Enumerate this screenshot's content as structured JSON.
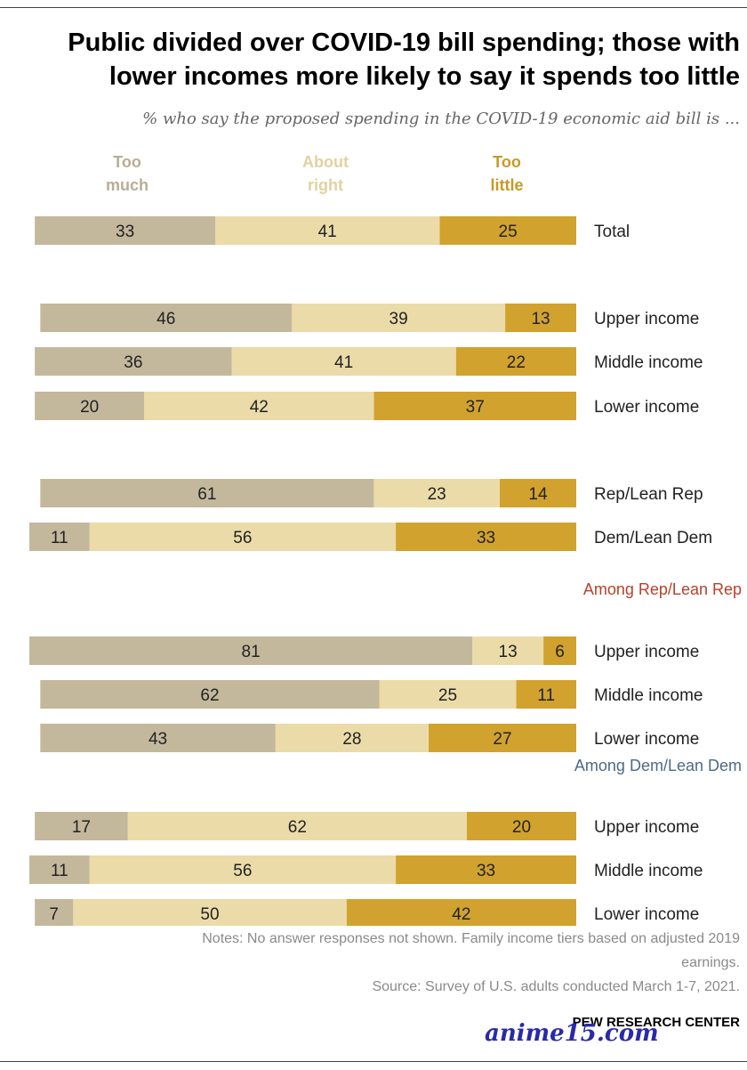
{
  "title": {
    "line1": "Public divided over COVID-19 bill spending; those with",
    "line2": "lower incomes more likely to say it spends too little"
  },
  "subtitle": "% who say the proposed spending in the COVID-19 economic aid bill is ...",
  "colors": {
    "too_little": "#d1a22e",
    "about_right": "#ebdba8",
    "too_much": "#c3b89c",
    "legend_too_little": "#c69a27",
    "legend_about_right": "#e1d2a0",
    "legend_too_much": "#b8ad96",
    "rep_header": "#b7412b",
    "dem_header": "#4e6a85"
  },
  "chart_data": {
    "type": "bar",
    "orientation": "horizontal-stacked",
    "series": [
      {
        "name": "Too little"
      },
      {
        "name": "About right"
      },
      {
        "name": "Too much"
      }
    ],
    "legend": [
      {
        "line1": "Too",
        "line2": "little"
      },
      {
        "line1": "About",
        "line2": "right"
      },
      {
        "line1": "Too",
        "line2": "much"
      }
    ],
    "groups": [
      {
        "header": null,
        "rows": [
          {
            "label": "Total",
            "values": [
              25,
              41,
              33
            ]
          }
        ]
      },
      {
        "header": null,
        "rows": [
          {
            "label": "Upper income",
            "values": [
              13,
              39,
              46
            ]
          },
          {
            "label": "Middle income",
            "values": [
              22,
              41,
              36
            ]
          },
          {
            "label": "Lower income",
            "values": [
              37,
              42,
              20
            ]
          }
        ]
      },
      {
        "header": null,
        "rows": [
          {
            "label": "Rep/Lean Rep",
            "values": [
              14,
              23,
              61
            ]
          },
          {
            "label": "Dem/Lean Dem",
            "values": [
              33,
              56,
              11
            ]
          }
        ]
      },
      {
        "header": "Among Rep/Lean Rep",
        "rows": [
          {
            "label": "Upper income",
            "values": [
              6,
              13,
              81
            ]
          },
          {
            "label": "Middle income",
            "values": [
              11,
              25,
              62
            ]
          },
          {
            "label": "Lower income",
            "values": [
              27,
              28,
              43
            ]
          }
        ]
      },
      {
        "header": "Among Dem/Lean Dem",
        "rows": [
          {
            "label": "Upper income",
            "values": [
              20,
              62,
              17
            ]
          },
          {
            "label": "Middle income",
            "values": [
              33,
              56,
              11
            ]
          },
          {
            "label": "Lower income",
            "values": [
              42,
              50,
              7
            ]
          }
        ]
      }
    ]
  },
  "notes": {
    "line1": "Notes: No answer responses not shown. Family income tiers based on adjusted 2019",
    "line2": "earnings.",
    "source": "Source: Survey of U.S. adults conducted March 1-7, 2021."
  },
  "brand": "PEW RESEARCH CENTER",
  "watermark": "anime15.com"
}
